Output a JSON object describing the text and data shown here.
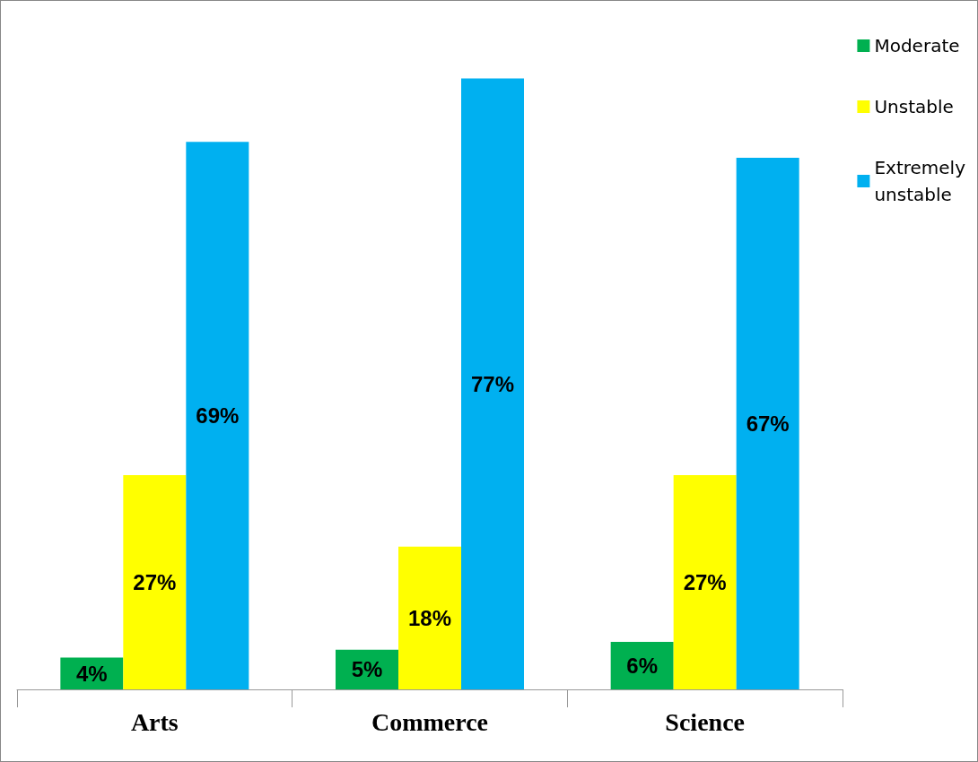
{
  "chart_data": {
    "type": "bar",
    "categories": [
      "Arts",
      "Commerce",
      "Science"
    ],
    "series": [
      {
        "name": "Moderate",
        "color": "#00b050",
        "values": [
          4,
          5,
          6
        ],
        "value_labels": [
          "4%",
          "5%",
          "6%"
        ]
      },
      {
        "name": "Unstable",
        "color": "#ffff00",
        "values": [
          27,
          18,
          27
        ],
        "value_labels": [
          "27%",
          "18%",
          "27%"
        ]
      },
      {
        "name": "Extremely unstable",
        "color": "#00b0f0",
        "values": [
          69,
          77,
          67
        ],
        "value_labels": [
          "69%",
          "77%",
          "67%"
        ]
      }
    ],
    "legend": "top right"
  }
}
